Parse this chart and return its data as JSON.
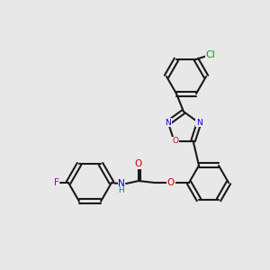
{
  "bg_color": "#e8e8e8",
  "bond_color": "#1a1a1a",
  "bond_lw": 1.5,
  "atom_colors": {
    "N": "#0000cc",
    "O": "#cc0000",
    "F": "#aa00aa",
    "Cl": "#00aa00",
    "H": "#008888",
    "C": "#1a1a1a"
  },
  "font_size": 7.5,
  "font_size_small": 6.5
}
